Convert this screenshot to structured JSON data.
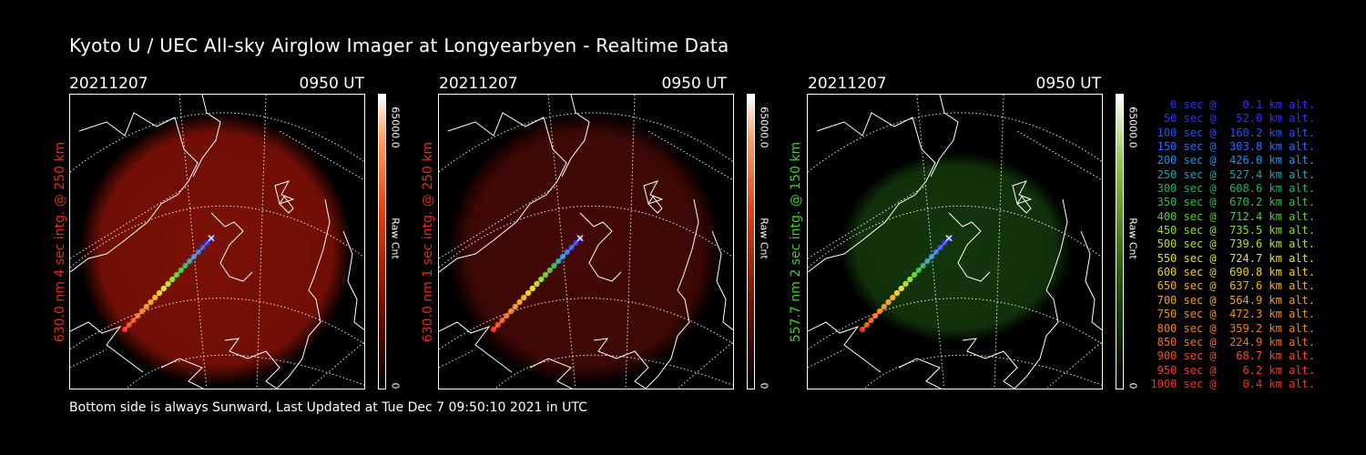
{
  "title": "Kyoto U / UEC All-sky Airglow Imager at Longyearbyen - Realtime Data",
  "footer": "Bottom side is always Sunward, Last Updated at Tue Dec  7 09:50:10 2021 in UTC",
  "panels": [
    {
      "date": "20211207",
      "time": "0950 UT",
      "side_label": "630.0 nm 4 sec intg. @ 250 km",
      "label_color": "#e03010",
      "cbar_max": "65000.0",
      "cbar_unit": "Raw Cnt",
      "cbar_min": "0",
      "image_color": "#9a1408",
      "image_intensity": 0.8
    },
    {
      "date": "20211207",
      "time": "0950 UT",
      "side_label": "630.0 nm 1 sec intg. @ 250 km",
      "label_color": "#e03010",
      "cbar_max": "65000.0",
      "cbar_unit": "Raw Cnt",
      "cbar_min": "0",
      "image_color": "#7a100a",
      "image_intensity": 0.55
    },
    {
      "date": "20211207",
      "time": "0950 UT",
      "side_label": "557.7 nm 2 sec intg. @ 150 km",
      "label_color": "#40d020",
      "cbar_max": "65000.0",
      "cbar_unit": "Raw Cnt",
      "cbar_min": "0",
      "image_color": "#1f5a14",
      "image_intensity": 0.6
    }
  ],
  "legend": [
    {
      "text": "   0 sec @    0.1 km alt.",
      "color": "#3030ff"
    },
    {
      "text": "  50 sec @   52.0 km alt.",
      "color": "#3030ff"
    },
    {
      "text": " 100 sec @  160.2 km alt.",
      "color": "#2050ff"
    },
    {
      "text": " 150 sec @  303.8 km alt.",
      "color": "#2070ff"
    },
    {
      "text": " 200 sec @  426.0 km alt.",
      "color": "#2090f0"
    },
    {
      "text": " 250 sec @  527.4 km alt.",
      "color": "#20a0b0"
    },
    {
      "text": " 300 sec @  608.6 km alt.",
      "color": "#20b070"
    },
    {
      "text": " 350 sec @  670.2 km alt.",
      "color": "#30c040"
    },
    {
      "text": " 400 sec @  712.4 km alt.",
      "color": "#50d030"
    },
    {
      "text": " 450 sec @  735.5 km alt.",
      "color": "#80e030"
    },
    {
      "text": " 500 sec @  739.6 km alt.",
      "color": "#b0e030"
    },
    {
      "text": " 550 sec @  724.7 km alt.",
      "color": "#e0e030"
    },
    {
      "text": " 600 sec @  690.8 km alt.",
      "color": "#f0d020"
    },
    {
      "text": " 650 sec @  637.6 km alt.",
      "color": "#f0b020"
    },
    {
      "text": " 700 sec @  564.9 km alt.",
      "color": "#f0a020"
    },
    {
      "text": " 750 sec @  472.3 km alt.",
      "color": "#f09020"
    },
    {
      "text": " 800 sec @  359.2 km alt.",
      "color": "#f08020"
    },
    {
      "text": " 850 sec @  224.9 km alt.",
      "color": "#f07020"
    },
    {
      "text": " 900 sec @   68.7 km alt.",
      "color": "#f05020"
    },
    {
      "text": " 950 sec @    6.2 km alt.",
      "color": "#f04020"
    },
    {
      "text": "1000 sec @    0.4 km alt.",
      "color": "#f03020"
    }
  ]
}
